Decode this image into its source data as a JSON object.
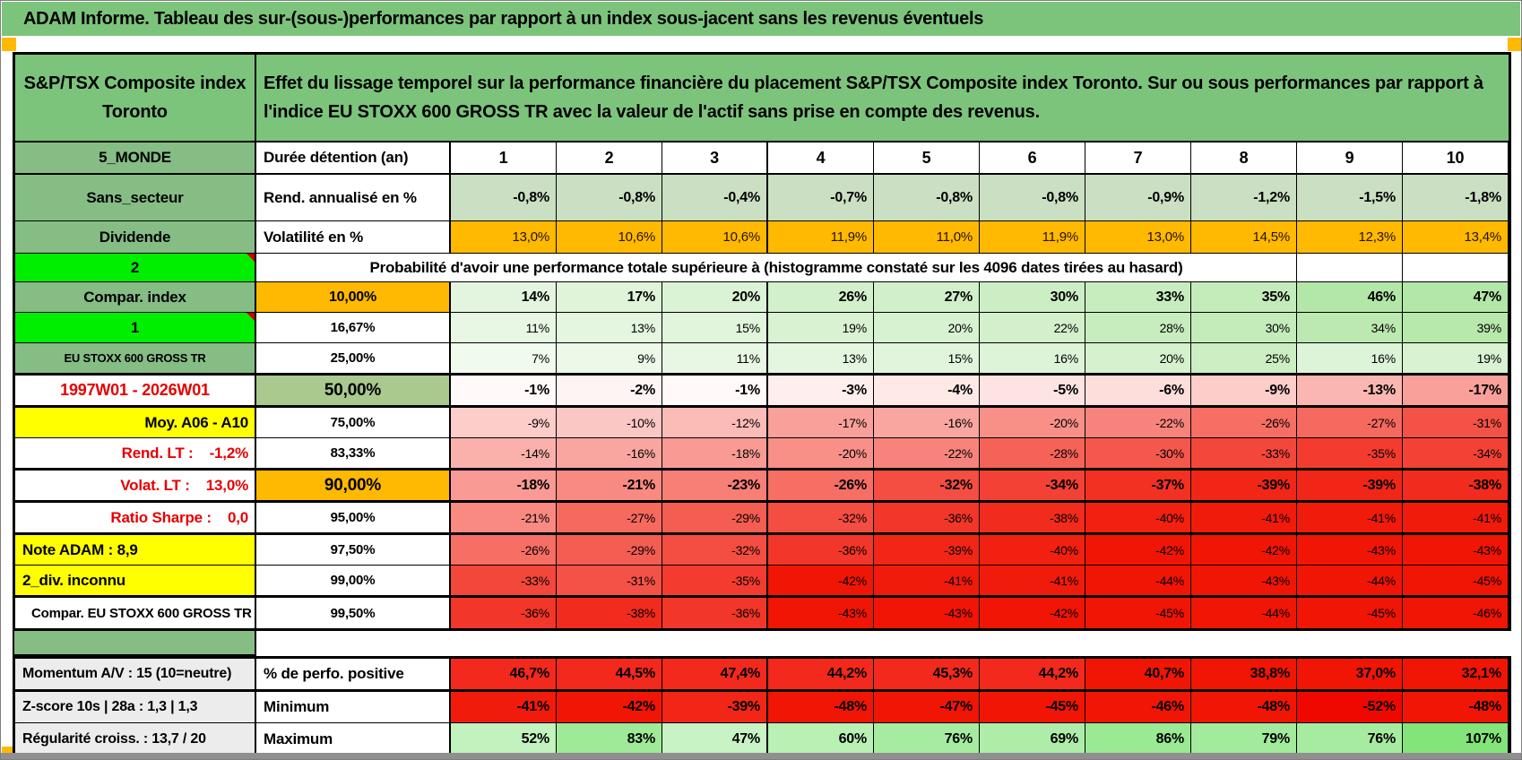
{
  "title_bar": {
    "text": "ADAM Informe. Tableau des sur-(sous-)performances par rapport à un index sous-jacent sans les revenus éventuels"
  },
  "header": {
    "asset_title_line1": "S&P/TSX Composite index",
    "asset_title_line2": "Toronto",
    "description": "Effet du lissage temporel sur la performance financière du placement S&P/TSX Composite index Toronto. Sur ou sous performances par rapport à l'indice EU STOXX 600 GROSS TR avec la valeur de l'actif sans prise en compte des revenus."
  },
  "year_header": {
    "label_a": "5_MONDE",
    "label_b": "Durée détention (an)",
    "years": [
      "1",
      "2",
      "3",
      "4",
      "5",
      "6",
      "7",
      "8",
      "9",
      "10"
    ]
  },
  "stat_rows": [
    {
      "label_a": "Sans_secteur",
      "label_b": "Rend. annualisé en %",
      "values": [
        "-0,8%",
        "-0,8%",
        "-0,4%",
        "-0,7%",
        "-0,8%",
        "-0,8%",
        "-0,9%",
        "-1,2%",
        "-1,5%",
        "-1,8%"
      ],
      "cell_bg": "#CBDFC3",
      "text_color": "#000000"
    },
    {
      "label_a": "Dividende",
      "label_b": "Volatilité en %",
      "values": [
        "13,0%",
        "10,6%",
        "10,6%",
        "11,9%",
        "11,0%",
        "11,9%",
        "13,0%",
        "14,5%",
        "12,3%",
        "13,4%"
      ],
      "cell_bg": "#FFB900",
      "text_color": "#241200"
    }
  ],
  "probability_banner": {
    "label_a": "2",
    "text": "Probabilité d'avoir une performance totale supérieure à (histogramme constaté sur les 4096 dates tirées au hasard)"
  },
  "probability_rows": [
    {
      "label_a": "Compar. index",
      "a_style": "green",
      "label_b": "10,00%",
      "b_style": "orange",
      "bold": true,
      "values": [
        "14%",
        "17%",
        "20%",
        "26%",
        "27%",
        "30%",
        "33%",
        "35%",
        "46%",
        "47%"
      ],
      "colors": [
        "#E3F5DE",
        "#DFF4D9",
        "#DBF3D5",
        "#D2F0CB",
        "#D1F0CA",
        "#CCEEC4",
        "#C7EDBF",
        "#C4ECBB",
        "#B3E7A8",
        "#B2E7A7"
      ]
    },
    {
      "label_a": "1",
      "a_style": "bright",
      "label_b": "16,67%",
      "b_style": "plain",
      "bold": false,
      "values": [
        "11%",
        "13%",
        "15%",
        "19%",
        "20%",
        "22%",
        "28%",
        "30%",
        "34%",
        "39%"
      ],
      "colors": [
        "#E8F7E4",
        "#E4F6E0",
        "#E0F5DB",
        "#D9F2D2",
        "#D7F2D0",
        "#D3F0CB",
        "#C7EDBF",
        "#C4ECBB",
        "#BCE9B2",
        "#B7E8AC"
      ]
    },
    {
      "label_a": "EU STOXX 600 GROSS TR",
      "a_style": "green-small",
      "label_b": "25,00%",
      "b_style": "plain",
      "bold": false,
      "values": [
        "7%",
        "9%",
        "11%",
        "13%",
        "15%",
        "16%",
        "20%",
        "25%",
        "16%",
        "19%"
      ],
      "colors": [
        "#F0FAED",
        "#ECF9E9",
        "#E8F7E4",
        "#E4F6E0",
        "#E0F5DB",
        "#DEF4D9",
        "#D5F1CE",
        "#CBEEC3",
        "#DEF4D9",
        "#D9F2D2"
      ]
    },
    {
      "label_a": "1997W01 - 2026W01",
      "a_style": "red-center",
      "label_b": "50,00%",
      "b_style": "green50",
      "bold": true,
      "values": [
        "-1%",
        "-2%",
        "-1%",
        "-3%",
        "-4%",
        "-5%",
        "-6%",
        "-9%",
        "-13%",
        "-17%"
      ],
      "colors": [
        "#FFF9F9",
        "#FEF4F3",
        "#FFF9F9",
        "#FEEEED",
        "#FEE9E7",
        "#FDE3E1",
        "#FDDEDB",
        "#FCCDC9",
        "#FAB7B2",
        "#F9A09A"
      ]
    },
    {
      "label_a": "Moy. A06 - A10",
      "a_style": "yellow-right",
      "label_b": "75,00%",
      "b_style": "plain",
      "bold": false,
      "values": [
        "-9%",
        "-10%",
        "-12%",
        "-17%",
        "-16%",
        "-20%",
        "-22%",
        "-26%",
        "-27%",
        "-31%"
      ],
      "colors": [
        "#FCCDC9",
        "#FBC7C4",
        "#FBBCB8",
        "#F9A09A",
        "#F9A6A0",
        "#F89088",
        "#F7847C",
        "#F66E64",
        "#F5695E",
        "#F45247"
      ]
    },
    {
      "label_a": "Rend. LT :    -1,2%",
      "a_style": "red-right",
      "label_b": "83,33%",
      "b_style": "plain",
      "bold": false,
      "values": [
        "-14%",
        "-16%",
        "-18%",
        "-20%",
        "-22%",
        "-28%",
        "-30%",
        "-33%",
        "-35%",
        "-34%"
      ],
      "colors": [
        "#FAB1AC",
        "#F9A6A0",
        "#F99B94",
        "#F89088",
        "#F7847C",
        "#F56358",
        "#F4584C",
        "#F3473B",
        "#F33C2F",
        "#F34235"
      ]
    },
    {
      "label_a": "Volat. LT :    13,0%",
      "a_style": "red-right",
      "label_b": "90,00%",
      "b_style": "orange-big",
      "bold": true,
      "values": [
        "-18%",
        "-21%",
        "-23%",
        "-26%",
        "-32%",
        "-34%",
        "-37%",
        "-39%",
        "-39%",
        "-38%"
      ],
      "colors": [
        "#F99B94",
        "#F88A82",
        "#F77F76",
        "#F66E64",
        "#F44D41",
        "#F34235",
        "#F23123",
        "#F12617",
        "#F12617",
        "#F12B1D"
      ]
    },
    {
      "label_a": "Ratio Sharpe :    0,0",
      "a_style": "red-right",
      "label_b": "95,00%",
      "b_style": "plain",
      "bold": false,
      "values": [
        "-21%",
        "-27%",
        "-29%",
        "-32%",
        "-36%",
        "-38%",
        "-40%",
        "-41%",
        "-41%",
        "-41%"
      ],
      "colors": [
        "#F88A82",
        "#F5695E",
        "#F45D52",
        "#F44D41",
        "#F23629",
        "#F12B1D",
        "#F12011",
        "#F01B0B",
        "#F01B0B",
        "#F01B0B"
      ]
    },
    {
      "label_a": "Note ADAM : 8,9",
      "a_style": "yellow-left",
      "label_b": "97,50%",
      "b_style": "plain",
      "bold": false,
      "values": [
        "-26%",
        "-29%",
        "-32%",
        "-36%",
        "-39%",
        "-40%",
        "-42%",
        "-42%",
        "-43%",
        "-43%"
      ],
      "colors": [
        "#F66E64",
        "#F45D52",
        "#F44D41",
        "#F23629",
        "#F12617",
        "#F12011",
        "#F01505",
        "#F01505",
        "#F01505",
        "#F01505"
      ]
    },
    {
      "label_a": "2_div. inconnu",
      "a_style": "yellow-left",
      "label_b": "99,00%",
      "b_style": "plain",
      "bold": false,
      "values": [
        "-33%",
        "-31%",
        "-35%",
        "-42%",
        "-41%",
        "-41%",
        "-44%",
        "-43%",
        "-44%",
        "-45%"
      ],
      "colors": [
        "#F3473B",
        "#F45247",
        "#F33C2F",
        "#F01505",
        "#F01B0B",
        "#F01B0B",
        "#F01505",
        "#F01505",
        "#F01505",
        "#F01505"
      ]
    },
    {
      "label_a": "Compar. EU STOXX 600 GROSS TR",
      "a_style": "white-left",
      "label_b": "99,50%",
      "b_style": "plain",
      "bold": false,
      "values": [
        "-36%",
        "-38%",
        "-36%",
        "-43%",
        "-43%",
        "-42%",
        "-45%",
        "-44%",
        "-45%",
        "-46%"
      ],
      "colors": [
        "#F23629",
        "#F12B1D",
        "#F23629",
        "#F01505",
        "#F01505",
        "#F01505",
        "#F01505",
        "#F01505",
        "#F01505",
        "#F01505"
      ]
    }
  ],
  "bottom_rows": [
    {
      "label_a": "Momentum A/V : 15 (10=neutre)",
      "label_b": "% de perfo. positive",
      "values": [
        "46,7%",
        "44,5%",
        "47,4%",
        "44,2%",
        "45,3%",
        "44,2%",
        "40,7%",
        "38,8%",
        "37,0%",
        "32,1%"
      ],
      "colors": [
        "#F2291C",
        "#F2291C",
        "#F2291C",
        "#F2291C",
        "#F2291C",
        "#F2291C",
        "#F01505",
        "#F01505",
        "#F01505",
        "#F01505"
      ]
    },
    {
      "label_a": "Z-score 10s | 28a : 1,3 | 1,3",
      "label_b": "Minimum",
      "values": [
        "-41%",
        "-42%",
        "-39%",
        "-48%",
        "-47%",
        "-45%",
        "-46%",
        "-48%",
        "-52%",
        "-48%"
      ],
      "colors": [
        "#F01B0B",
        "#F01505",
        "#F12617",
        "#F01505",
        "#F01505",
        "#F01505",
        "#F01505",
        "#F01505",
        "#EE0800",
        "#F01505"
      ]
    },
    {
      "label_a": "Régularité croiss. : 13,7 / 20",
      "label_b": "Maximum",
      "values": [
        "52%",
        "83%",
        "47%",
        "60%",
        "76%",
        "69%",
        "86%",
        "79%",
        "76%",
        "107%"
      ],
      "colors": [
        "#C2F2BE",
        "#9EEA97",
        "#C8F3C4",
        "#B9F0B4",
        "#A6ECA0",
        "#AEEDA9",
        "#9AE993",
        "#A2EA9C",
        "#A6ECA0",
        "#82E479"
      ]
    }
  ],
  "colors": {
    "green_banner": "#7CC47C",
    "green_label": "#85BD85",
    "green_bright": "#00EE00",
    "green_50": "#A9C98F",
    "orange": "#FFB900",
    "yellow": "#FFFF00",
    "red_text": "#E60000",
    "gray_label": "#ECECEC",
    "red_marker": "#D00000",
    "chrome_gray": "#8F8F8F"
  }
}
